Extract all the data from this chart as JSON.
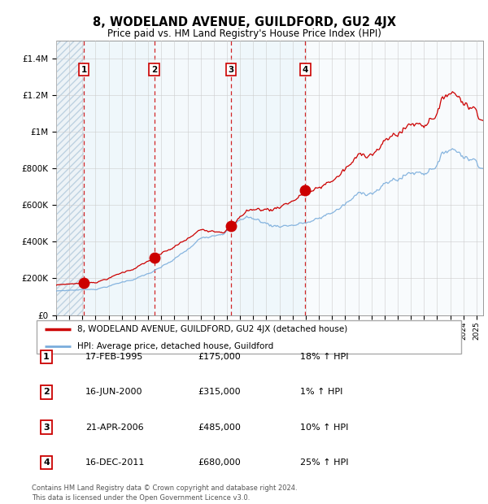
{
  "title": "8, WODELAND AVENUE, GUILDFORD, GU2 4JX",
  "subtitle": "Price paid vs. HM Land Registry's House Price Index (HPI)",
  "legend_line1": "8, WODELAND AVENUE, GUILDFORD, GU2 4JX (detached house)",
  "legend_line2": "HPI: Average price, detached house, Guildford",
  "sales_t": [
    1995.12,
    2000.46,
    2006.31,
    2011.96
  ],
  "sales_prices": [
    175000,
    315000,
    485000,
    680000
  ],
  "sale_labels": [
    "1",
    "2",
    "3",
    "4"
  ],
  "red_line_color": "#cc0000",
  "blue_line_color": "#7aaddc",
  "sale_marker_color": "#cc0000",
  "dashed_line_color": "#cc0000",
  "grid_color": "#cccccc",
  "ylim": [
    0,
    1500000
  ],
  "xlim_start": 1993.0,
  "xlim_end": 2025.5,
  "footnote": "Contains HM Land Registry data © Crown copyright and database right 2024.\nThis data is licensed under the Open Government Licence v3.0.",
  "table_rows": [
    [
      "1",
      "17-FEB-1995",
      "£175,000",
      "18% ↑ HPI"
    ],
    [
      "2",
      "16-JUN-2000",
      "£315,000",
      "1% ↑ HPI"
    ],
    [
      "3",
      "21-APR-2006",
      "£485,000",
      "10% ↑ HPI"
    ],
    [
      "4",
      "16-DEC-2011",
      "£680,000",
      "25% ↑ HPI"
    ]
  ],
  "yticks": [
    0,
    200000,
    400000,
    600000,
    800000,
    1000000,
    1200000,
    1400000
  ],
  "ylabels": [
    "£0",
    "£200K",
    "£400K",
    "£600K",
    "£800K",
    "£1M",
    "£1.2M",
    "£1.4M"
  ]
}
